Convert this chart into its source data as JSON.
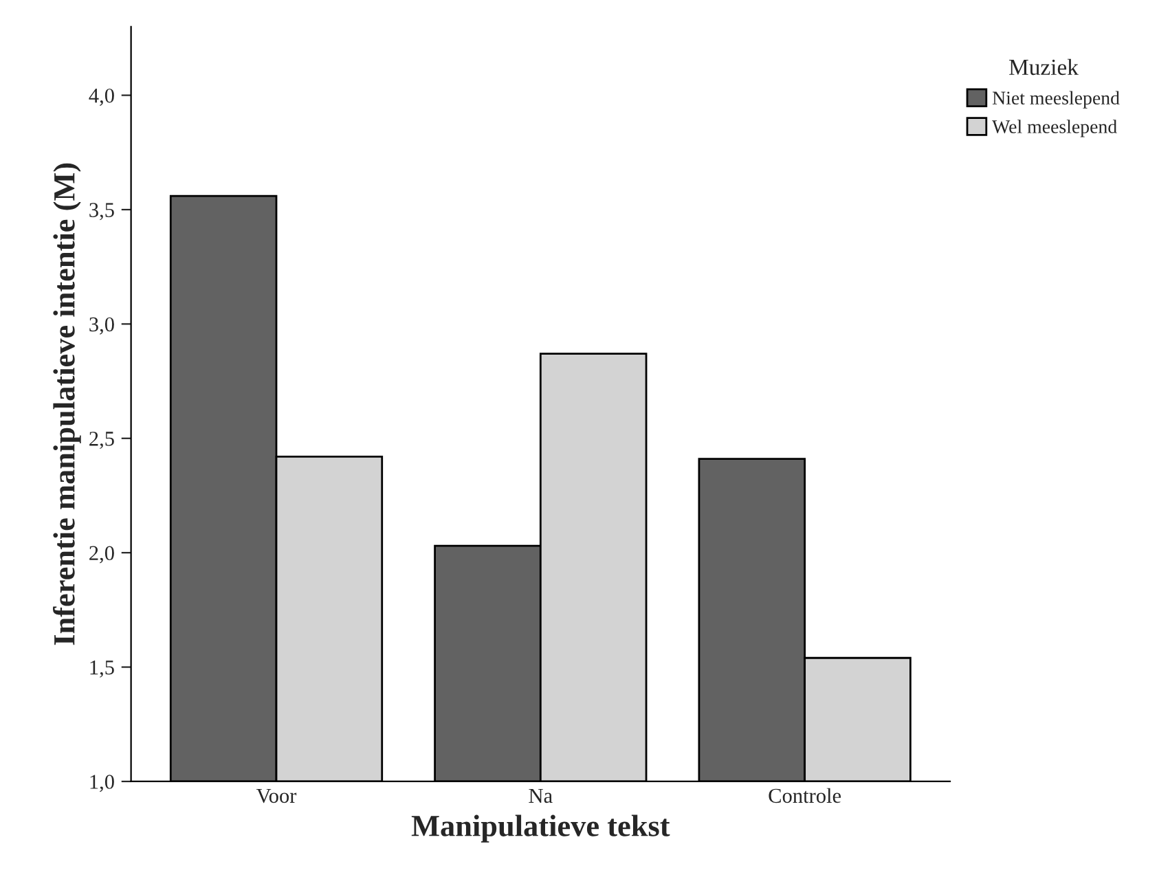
{
  "chart_data": {
    "type": "bar",
    "xlabel": "Manipulatieve tekst",
    "ylabel": "Inferentie manipulatieve intentie (M)",
    "legend_title": "Muziek",
    "categories": [
      "Voor",
      "Na",
      "Controle"
    ],
    "series": [
      {
        "name": "Niet meeslepend",
        "color": "#626262",
        "values": [
          3.56,
          2.03,
          2.41
        ]
      },
      {
        "name": "Wel meeslepend",
        "color": "#d3d3d3",
        "values": [
          2.42,
          2.87,
          1.54
        ]
      }
    ],
    "ylim": [
      1.0,
      4.3
    ],
    "yticks": [
      {
        "value": 1.0,
        "label": "1,0"
      },
      {
        "value": 1.5,
        "label": "1,5"
      },
      {
        "value": 2.0,
        "label": "2,0"
      },
      {
        "value": 2.5,
        "label": "2,5"
      },
      {
        "value": 3.0,
        "label": "3,0"
      },
      {
        "value": 3.5,
        "label": "3,5"
      },
      {
        "value": 4.0,
        "label": "4,0"
      }
    ],
    "grid": false,
    "legend": "top right"
  }
}
